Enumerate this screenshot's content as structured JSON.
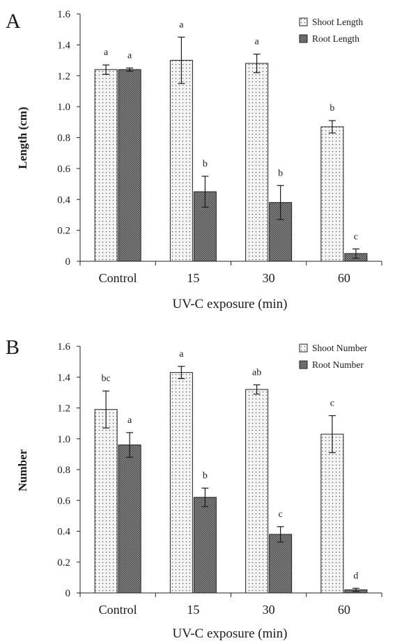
{
  "colors": {
    "shoot_fill": "#f3f3f3",
    "root_fill": "#7b7b7b",
    "axis": "#222222"
  },
  "chart_data": [
    {
      "panel_label": "A",
      "type": "bar",
      "categories": [
        "Control",
        "15",
        "30",
        "60"
      ],
      "xlabel": "UV-C exposure (min)",
      "ylabel": "Length (cm)",
      "ylim": [
        0,
        1.6
      ],
      "yticks": [
        "0",
        "0.2",
        "0.4",
        "0.6",
        "0.8",
        "1.0",
        "1.2",
        "1.4",
        "1.6"
      ],
      "legend_position": "top-right",
      "grid": false,
      "series": [
        {
          "name": "Shoot Length",
          "pattern": "dots",
          "values": [
            1.24,
            1.3,
            1.28,
            0.87
          ],
          "errors": [
            0.03,
            0.15,
            0.06,
            0.04
          ],
          "letters": [
            "a",
            "a",
            "a",
            "b"
          ]
        },
        {
          "name": "Root Length",
          "pattern": "hatch",
          "values": [
            1.24,
            0.45,
            0.38,
            0.05
          ],
          "errors": [
            0.01,
            0.1,
            0.11,
            0.03
          ],
          "letters": [
            "a",
            "b",
            "b",
            "c"
          ]
        }
      ]
    },
    {
      "panel_label": "B",
      "type": "bar",
      "categories": [
        "Control",
        "15",
        "30",
        "60"
      ],
      "xlabel": "UV-C exposure (min)",
      "ylabel": "Number",
      "ylim": [
        0,
        1.6
      ],
      "yticks": [
        "0",
        "0.2",
        "0.4",
        "0.6",
        "0.8",
        "1.0",
        "1.2",
        "1.4",
        "1.6"
      ],
      "legend_position": "top-right",
      "grid": false,
      "series": [
        {
          "name": "Shoot Number",
          "pattern": "dots",
          "values": [
            1.19,
            1.43,
            1.32,
            1.03
          ],
          "errors": [
            0.12,
            0.04,
            0.03,
            0.12
          ],
          "letters": [
            "bc",
            "a",
            "ab",
            "c"
          ]
        },
        {
          "name": "Root Number",
          "pattern": "hatch",
          "values": [
            0.96,
            0.62,
            0.38,
            0.02
          ],
          "errors": [
            0.08,
            0.06,
            0.05,
            0.01
          ],
          "letters": [
            "a",
            "b",
            "c",
            "d"
          ]
        }
      ]
    }
  ]
}
